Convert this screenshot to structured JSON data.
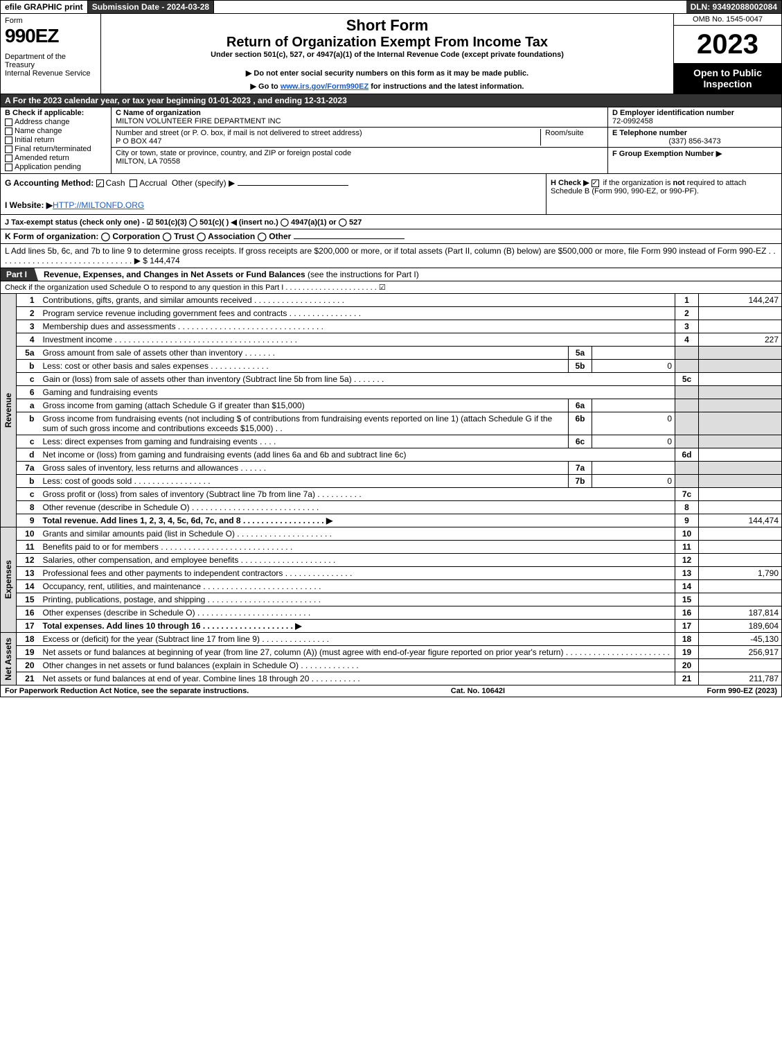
{
  "topbar": {
    "efile": "efile GRAPHIC print",
    "subdate": "Submission Date - 2024-03-28",
    "dln": "DLN: 93492088002084"
  },
  "header": {
    "form": "Form",
    "formno": "990EZ",
    "dept": "Department of the Treasury",
    "irs": "Internal Revenue Service",
    "short": "Short Form",
    "return": "Return of Organization Exempt From Income Tax",
    "under": "Under section 501(c), 527, or 4947(a)(1) of the Internal Revenue Code (except private foundations)",
    "donot": "▶ Do not enter social security numbers on this form as it may be made public.",
    "goto_pre": "▶ Go to ",
    "goto_link": "www.irs.gov/Form990EZ",
    "goto_post": " for instructions and the latest information.",
    "omb": "OMB No. 1545-0047",
    "year": "2023",
    "open": "Open to Public Inspection"
  },
  "lineA": "A  For the 2023 calendar year, or tax year beginning 01-01-2023 , and ending 12-31-2023",
  "colB": {
    "hd": "B  Check if applicable:",
    "opts": [
      "Address change",
      "Name change",
      "Initial return",
      "Final return/terminated",
      "Amended return",
      "Application pending"
    ]
  },
  "colC": {
    "name_lbl": "C Name of organization",
    "name_val": "MILTON VOLUNTEER FIRE DEPARTMENT INC",
    "addr_lbl": "Number and street (or P. O. box, if mail is not delivered to street address)",
    "addr_val": "P O BOX 447",
    "suite_lbl": "Room/suite",
    "city_lbl": "City or town, state or province, country, and ZIP or foreign postal code",
    "city_val": "MILTON, LA  70558"
  },
  "colD": {
    "ein_lbl": "D Employer identification number",
    "ein_val": "72-0992458",
    "tel_lbl": "E Telephone number",
    "tel_val": "(337) 856-3473",
    "grp_lbl": "F Group Exemption Number  ▶"
  },
  "rowG": {
    "g_lbl": "G Accounting Method:",
    "g_cash": "Cash",
    "g_accr": "Accrual",
    "g_other": "Other (specify) ▶",
    "h_txt1": "H  Check ▶ ",
    "h_txt2": " if the organization is ",
    "h_not": "not",
    "h_txt3": " required to attach Schedule B (Form 990, 990-EZ, or 990-PF)."
  },
  "rowI": {
    "lbl": "I Website: ▶",
    "link": "HTTP://MILTONFD.ORG"
  },
  "rowJ": "J Tax-exempt status (check only one) -  ☑ 501(c)(3)  ◯ 501(c)(  ) ◀ (insert no.)  ◯ 4947(a)(1) or  ◯ 527",
  "rowK": "K Form of organization:   ◯ Corporation   ◯ Trust   ◯ Association   ◯ Other",
  "rowL": {
    "txt": "L Add lines 5b, 6c, and 7b to line 9 to determine gross receipts. If gross receipts are $200,000 or more, or if total assets (Part II, column (B) below) are $500,000 or more, file Form 990 instead of Form 990-EZ . . . . . . . . . . . . . . . . . . . . . . . . . . . . . .  ▶ $",
    "val": "144,474"
  },
  "part1": {
    "tab": "Part I",
    "title": "Revenue, Expenses, and Changes in Net Assets or Fund Balances ",
    "sub": "(see the instructions for Part I)",
    "check": "Check if the organization used Schedule O to respond to any question in this Part I . . . . . . . . . . . . . . . . . . . . . .  ☑"
  },
  "sections": {
    "revenue": "Revenue",
    "expenses": "Expenses",
    "netassets": "Net Assets"
  },
  "lines": [
    {
      "n": "1",
      "d": "Contributions, gifts, grants, and similar amounts received . . . . . . . . . . . . . . . . . . . .",
      "rn": "1",
      "rv": "144,247"
    },
    {
      "n": "2",
      "d": "Program service revenue including government fees and contracts . . . . . . . . . . . . . . . .",
      "rn": "2",
      "rv": ""
    },
    {
      "n": "3",
      "d": "Membership dues and assessments . . . . . . . . . . . . . . . . . . . . . . . . . . . . . . . .",
      "rn": "3",
      "rv": ""
    },
    {
      "n": "4",
      "d": "Investment income . . . . . . . . . . . . . . . . . . . . . . . . . . . . . . . . . . . . . . . .",
      "rn": "4",
      "rv": "227"
    },
    {
      "n": "5a",
      "d": "Gross amount from sale of assets other than inventory . . . . . . .",
      "sn": "5a",
      "sv": "",
      "rn": "",
      "rv": "",
      "rsh": true
    },
    {
      "n": "b",
      "d": "Less: cost or other basis and sales expenses . . . . . . . . . . . . .",
      "sn": "5b",
      "sv": "0",
      "rn": "",
      "rv": "",
      "rsh": true
    },
    {
      "n": "c",
      "d": "Gain or (loss) from sale of assets other than inventory (Subtract line 5b from line 5a) . . . . . . .",
      "rn": "5c",
      "rv": ""
    },
    {
      "n": "6",
      "d": "Gaming and fundraising events",
      "rn": "",
      "rv": "",
      "rsh": true
    },
    {
      "n": "a",
      "d": "Gross income from gaming (attach Schedule G if greater than $15,000)",
      "sn": "6a",
      "sv": "",
      "rn": "",
      "rv": "",
      "rsh": true
    },
    {
      "n": "b",
      "d": "Gross income from fundraising events (not including $                     of contributions from fundraising events reported on line 1) (attach Schedule G if the sum of such gross income and contributions exceeds $15,000)   . .",
      "sn": "6b",
      "sv": "0",
      "rn": "",
      "rv": "",
      "rsh": true
    },
    {
      "n": "c",
      "d": "Less: direct expenses from gaming and fundraising events   . . . .",
      "sn": "6c",
      "sv": "0",
      "rn": "",
      "rv": "",
      "rsh": true
    },
    {
      "n": "d",
      "d": "Net income or (loss) from gaming and fundraising events (add lines 6a and 6b and subtract line 6c)",
      "rn": "6d",
      "rv": ""
    },
    {
      "n": "7a",
      "d": "Gross sales of inventory, less returns and allowances . . . . . .",
      "sn": "7a",
      "sv": "",
      "rn": "",
      "rv": "",
      "rsh": true
    },
    {
      "n": "b",
      "d": "Less: cost of goods sold     . . . . . . . . . . . . . . . . .",
      "sn": "7b",
      "sv": "0",
      "rn": "",
      "rv": "",
      "rsh": true
    },
    {
      "n": "c",
      "d": "Gross profit or (loss) from sales of inventory (Subtract line 7b from line 7a) . . . . . . . . . .",
      "rn": "7c",
      "rv": ""
    },
    {
      "n": "8",
      "d": "Other revenue (describe in Schedule O) . . . . . . . . . . . . . . . . . . . . . . . . . . . .",
      "rn": "8",
      "rv": ""
    },
    {
      "n": "9",
      "d": "Total revenue. Add lines 1, 2, 3, 4, 5c, 6d, 7c, and 8  . . . . . . . . . . . . . . . . . .   ▶",
      "rn": "9",
      "rv": "144,474",
      "bold": true
    }
  ],
  "exp_lines": [
    {
      "n": "10",
      "d": "Grants and similar amounts paid (list in Schedule O) . . . . . . . . . . . . . . . . . . . . .",
      "rn": "10",
      "rv": ""
    },
    {
      "n": "11",
      "d": "Benefits paid to or for members     . . . . . . . . . . . . . . . . . . . . . . . . . . . . .",
      "rn": "11",
      "rv": ""
    },
    {
      "n": "12",
      "d": "Salaries, other compensation, and employee benefits . . . . . . . . . . . . . . . . . . . . .",
      "rn": "12",
      "rv": ""
    },
    {
      "n": "13",
      "d": "Professional fees and other payments to independent contractors . . . . . . . . . . . . . . .",
      "rn": "13",
      "rv": "1,790"
    },
    {
      "n": "14",
      "d": "Occupancy, rent, utilities, and maintenance . . . . . . . . . . . . . . . . . . . . . . . . . .",
      "rn": "14",
      "rv": ""
    },
    {
      "n": "15",
      "d": "Printing, publications, postage, and shipping . . . . . . . . . . . . . . . . . . . . . . . . .",
      "rn": "15",
      "rv": ""
    },
    {
      "n": "16",
      "d": "Other expenses (describe in Schedule O)    . . . . . . . . . . . . . . . . . . . . . . . . .",
      "rn": "16",
      "rv": "187,814"
    },
    {
      "n": "17",
      "d": "Total expenses. Add lines 10 through 16     . . . . . . . . . . . . . . . . . . . .    ▶",
      "rn": "17",
      "rv": "189,604",
      "bold": true
    }
  ],
  "na_lines": [
    {
      "n": "18",
      "d": "Excess or (deficit) for the year (Subtract line 17 from line 9)      . . . . . . . . . . . . . . .",
      "rn": "18",
      "rv": "-45,130"
    },
    {
      "n": "19",
      "d": "Net assets or fund balances at beginning of year (from line 27, column (A)) (must agree with end-of-year figure reported on prior year's return) . . . . . . . . . . . . . . . . . . . . . . .",
      "rn": "19",
      "rv": "256,917"
    },
    {
      "n": "20",
      "d": "Other changes in net assets or fund balances (explain in Schedule O) . . . . . . . . . . . . .",
      "rn": "20",
      "rv": ""
    },
    {
      "n": "21",
      "d": "Net assets or fund balances at end of year. Combine lines 18 through 20 . . . . . . . . . . .",
      "rn": "21",
      "rv": "211,787"
    }
  ],
  "footer": {
    "left": "For Paperwork Reduction Act Notice, see the separate instructions.",
    "mid": "Cat. No. 10642I",
    "right_pre": "Form ",
    "right_bold": "990-EZ",
    "right_post": " (2023)"
  },
  "style": {
    "colors": {
      "hdr_bg": "#333333",
      "hdr_fg": "#ffffff",
      "shade": "#dddddd",
      "link": "#1a5cc8"
    }
  }
}
